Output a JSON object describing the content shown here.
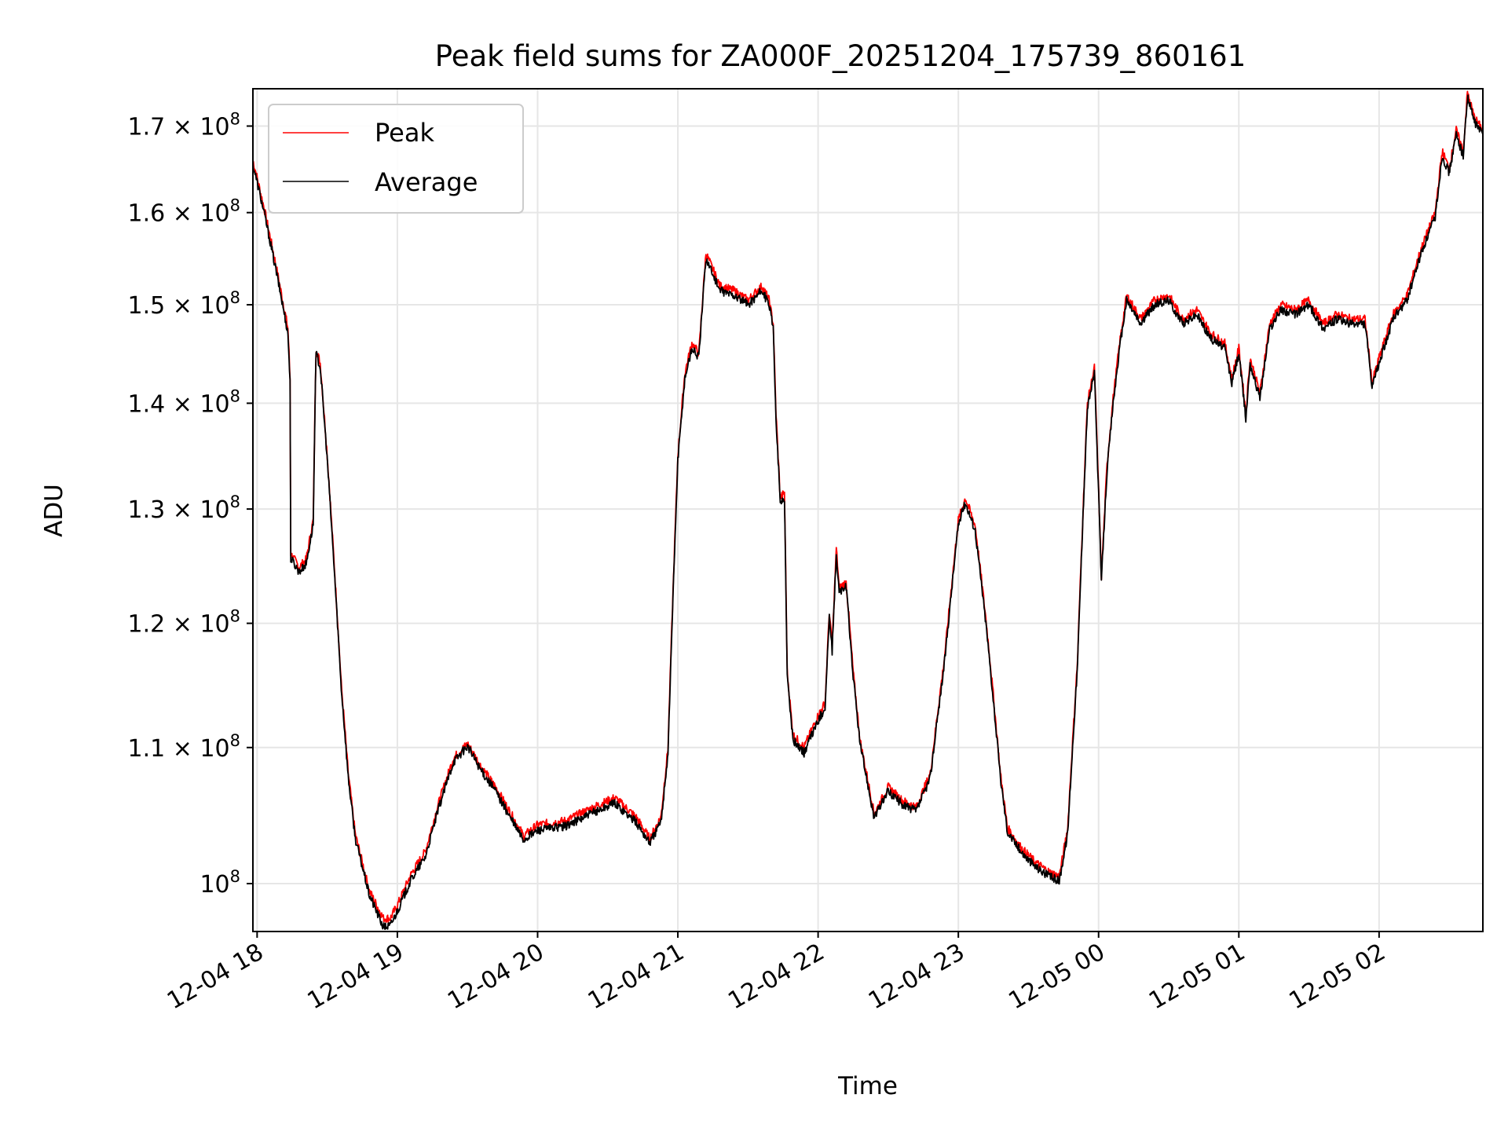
{
  "chart_data": {
    "type": "line",
    "title": "Peak field sums for ZA000F_20251204_175739_860161",
    "xlabel": "Time",
    "ylabel": "ADU",
    "yscale": "log",
    "ylim": [
      96700000,
      174500000
    ],
    "xlim_hours": [
      17.97,
      26.74
    ],
    "grid": true,
    "legend_position": "upper-left",
    "x_ticks": [
      {
        "hour": 18,
        "label": "12-04 18"
      },
      {
        "hour": 19,
        "label": "12-04 19"
      },
      {
        "hour": 20,
        "label": "12-04 20"
      },
      {
        "hour": 21,
        "label": "12-04 21"
      },
      {
        "hour": 22,
        "label": "12-04 22"
      },
      {
        "hour": 23,
        "label": "12-04 23"
      },
      {
        "hour": 24,
        "label": "12-05 00"
      },
      {
        "hour": 25,
        "label": "12-05 01"
      },
      {
        "hour": 26,
        "label": "12-05 02"
      }
    ],
    "y_ticks": [
      {
        "value": 100000000,
        "mantissa": "",
        "exponent": "8"
      },
      {
        "value": 110000000,
        "mantissa": "1.1",
        "exponent": "8"
      },
      {
        "value": 120000000,
        "mantissa": "1.2",
        "exponent": "8"
      },
      {
        "value": 130000000,
        "mantissa": "1.3",
        "exponent": "8"
      },
      {
        "value": 140000000,
        "mantissa": "1.4",
        "exponent": "8"
      },
      {
        "value": 150000000,
        "mantissa": "1.5",
        "exponent": "8"
      },
      {
        "value": 160000000,
        "mantissa": "1.6",
        "exponent": "8"
      },
      {
        "value": 170000000,
        "mantissa": "1.7",
        "exponent": "8"
      }
    ],
    "series": [
      {
        "name": "Peak",
        "color": "#ff0000",
        "points": [
          [
            17.97,
            166.0
          ],
          [
            18.05,
            160.5
          ],
          [
            18.15,
            153.0
          ],
          [
            18.22,
            147.5
          ],
          [
            18.235,
            142.5
          ],
          [
            18.24,
            126.0
          ],
          [
            18.3,
            124.8
          ],
          [
            18.35,
            125.5
          ],
          [
            18.4,
            129.0
          ],
          [
            18.42,
            145.5
          ],
          [
            18.45,
            144.0
          ],
          [
            18.5,
            135.0
          ],
          [
            18.55,
            125.0
          ],
          [
            18.6,
            115.0
          ],
          [
            18.65,
            108.0
          ],
          [
            18.7,
            103.5
          ],
          [
            18.8,
            99.5
          ],
          [
            18.9,
            97.6
          ],
          [
            18.95,
            97.6
          ],
          [
            19.0,
            98.5
          ],
          [
            19.1,
            100.7
          ],
          [
            19.2,
            102.3
          ],
          [
            19.3,
            106.0
          ],
          [
            19.4,
            109.2
          ],
          [
            19.5,
            110.3
          ],
          [
            19.6,
            108.5
          ],
          [
            19.7,
            107.0
          ],
          [
            19.8,
            105.2
          ],
          [
            19.9,
            103.4
          ],
          [
            20.0,
            104.2
          ],
          [
            20.2,
            104.5
          ],
          [
            20.4,
            105.5
          ],
          [
            20.55,
            106.2
          ],
          [
            20.7,
            104.8
          ],
          [
            20.8,
            103.2
          ],
          [
            20.88,
            104.8
          ],
          [
            20.93,
            110.0
          ],
          [
            21.0,
            135.0
          ],
          [
            21.05,
            143.0
          ],
          [
            21.1,
            146.0
          ],
          [
            21.15,
            145.0
          ],
          [
            21.2,
            155.5
          ],
          [
            21.3,
            152.0
          ],
          [
            21.4,
            151.5
          ],
          [
            21.5,
            150.5
          ],
          [
            21.6,
            152.0
          ],
          [
            21.65,
            150.5
          ],
          [
            21.68,
            148.0
          ],
          [
            21.7,
            139.0
          ],
          [
            21.73,
            131.0
          ],
          [
            21.76,
            131.5
          ],
          [
            21.78,
            116.0
          ],
          [
            21.82,
            111.0
          ],
          [
            21.9,
            110.0
          ],
          [
            22.0,
            112.5
          ],
          [
            22.05,
            113.5
          ],
          [
            22.08,
            121.0
          ],
          [
            22.1,
            118.0
          ],
          [
            22.13,
            126.5
          ],
          [
            22.15,
            123.0
          ],
          [
            22.2,
            123.5
          ],
          [
            22.25,
            116.0
          ],
          [
            22.3,
            110.5
          ],
          [
            22.4,
            105.0
          ],
          [
            22.5,
            107.0
          ],
          [
            22.6,
            106.0
          ],
          [
            22.7,
            105.5
          ],
          [
            22.8,
            108.0
          ],
          [
            22.9,
            117.0
          ],
          [
            23.0,
            129.0
          ],
          [
            23.05,
            131.0
          ],
          [
            23.12,
            128.5
          ],
          [
            23.2,
            120.0
          ],
          [
            23.3,
            108.0
          ],
          [
            23.35,
            104.0
          ],
          [
            23.45,
            102.5
          ],
          [
            23.55,
            101.5
          ],
          [
            23.65,
            100.8
          ],
          [
            23.72,
            100.5
          ],
          [
            23.78,
            104.0
          ],
          [
            23.85,
            117.0
          ],
          [
            23.92,
            140.0
          ],
          [
            23.97,
            143.5
          ],
          [
            24.02,
            124.0
          ],
          [
            24.06,
            134.0
          ],
          [
            24.1,
            140.0
          ],
          [
            24.15,
            146.0
          ],
          [
            24.2,
            151.0
          ],
          [
            24.3,
            148.5
          ],
          [
            24.4,
            150.5
          ],
          [
            24.5,
            151.0
          ],
          [
            24.6,
            148.5
          ],
          [
            24.7,
            149.5
          ],
          [
            24.8,
            147.0
          ],
          [
            24.9,
            146.0
          ],
          [
            24.95,
            142.5
          ],
          [
            25.0,
            145.5
          ],
          [
            25.05,
            139.0
          ],
          [
            25.08,
            144.5
          ],
          [
            25.15,
            141.0
          ],
          [
            25.22,
            148.0
          ],
          [
            25.3,
            150.0
          ],
          [
            25.4,
            149.5
          ],
          [
            25.5,
            150.5
          ],
          [
            25.6,
            148.0
          ],
          [
            25.7,
            149.0
          ],
          [
            25.8,
            148.5
          ],
          [
            25.9,
            148.5
          ],
          [
            25.95,
            142.0
          ],
          [
            26.0,
            144.5
          ],
          [
            26.1,
            149.0
          ],
          [
            26.2,
            151.0
          ],
          [
            26.3,
            156.0
          ],
          [
            26.4,
            160.0
          ],
          [
            26.45,
            167.0
          ],
          [
            26.5,
            165.0
          ],
          [
            26.55,
            169.5
          ],
          [
            26.6,
            167.0
          ],
          [
            26.63,
            174.0
          ],
          [
            26.68,
            171.0
          ],
          [
            26.74,
            169.5
          ]
        ]
      },
      {
        "name": "Average",
        "color": "#000000",
        "points": [
          [
            17.97,
            165.5
          ],
          [
            18.05,
            160.0
          ],
          [
            18.15,
            152.5
          ],
          [
            18.22,
            147.0
          ],
          [
            18.235,
            142.0
          ],
          [
            18.24,
            125.6
          ],
          [
            18.3,
            124.4
          ],
          [
            18.35,
            125.1
          ],
          [
            18.4,
            128.6
          ],
          [
            18.42,
            145.0
          ],
          [
            18.45,
            143.6
          ],
          [
            18.5,
            134.6
          ],
          [
            18.55,
            124.6
          ],
          [
            18.6,
            114.7
          ],
          [
            18.65,
            107.7
          ],
          [
            18.7,
            103.2
          ],
          [
            18.8,
            99.2
          ],
          [
            18.9,
            97.0
          ],
          [
            18.95,
            97.1
          ],
          [
            19.0,
            98.1
          ],
          [
            19.1,
            100.3
          ],
          [
            19.2,
            101.9
          ],
          [
            19.3,
            105.6
          ],
          [
            19.4,
            108.9
          ],
          [
            19.5,
            110.1
          ],
          [
            19.6,
            108.2
          ],
          [
            19.7,
            106.7
          ],
          [
            19.8,
            104.8
          ],
          [
            19.9,
            103.1
          ],
          [
            20.0,
            103.8
          ],
          [
            20.2,
            104.1
          ],
          [
            20.4,
            105.1
          ],
          [
            20.55,
            105.8
          ],
          [
            20.7,
            104.4
          ],
          [
            20.8,
            102.9
          ],
          [
            20.88,
            104.4
          ],
          [
            20.93,
            109.6
          ],
          [
            21.0,
            134.5
          ],
          [
            21.05,
            142.5
          ],
          [
            21.1,
            145.5
          ],
          [
            21.15,
            144.6
          ],
          [
            21.2,
            155.0
          ],
          [
            21.3,
            151.5
          ],
          [
            21.4,
            151.0
          ],
          [
            21.5,
            150.0
          ],
          [
            21.6,
            151.5
          ],
          [
            21.65,
            150.0
          ],
          [
            21.68,
            147.5
          ],
          [
            21.7,
            138.6
          ],
          [
            21.73,
            130.5
          ],
          [
            21.76,
            131.0
          ],
          [
            21.78,
            115.6
          ],
          [
            21.82,
            110.6
          ],
          [
            21.9,
            109.6
          ],
          [
            22.0,
            112.1
          ],
          [
            22.05,
            113.1
          ],
          [
            22.08,
            120.6
          ],
          [
            22.1,
            117.6
          ],
          [
            22.13,
            126.0
          ],
          [
            22.15,
            122.6
          ],
          [
            22.2,
            123.1
          ],
          [
            22.25,
            115.6
          ],
          [
            22.3,
            110.2
          ],
          [
            22.4,
            104.7
          ],
          [
            22.5,
            106.7
          ],
          [
            22.6,
            105.7
          ],
          [
            22.7,
            105.2
          ],
          [
            22.8,
            107.7
          ],
          [
            22.9,
            116.6
          ],
          [
            23.0,
            128.6
          ],
          [
            23.05,
            130.6
          ],
          [
            23.12,
            128.1
          ],
          [
            23.2,
            119.6
          ],
          [
            23.3,
            107.7
          ],
          [
            23.35,
            103.7
          ],
          [
            23.45,
            102.2
          ],
          [
            23.55,
            101.2
          ],
          [
            23.65,
            100.5
          ],
          [
            23.72,
            100.2
          ],
          [
            23.78,
            103.6
          ],
          [
            23.85,
            116.6
          ],
          [
            23.92,
            139.5
          ],
          [
            23.97,
            143.0
          ],
          [
            24.02,
            123.6
          ],
          [
            24.06,
            133.5
          ],
          [
            24.1,
            139.5
          ],
          [
            24.15,
            145.5
          ],
          [
            24.2,
            150.5
          ],
          [
            24.3,
            148.0
          ],
          [
            24.4,
            150.0
          ],
          [
            24.5,
            150.5
          ],
          [
            24.6,
            148.0
          ],
          [
            24.7,
            149.0
          ],
          [
            24.8,
            146.5
          ],
          [
            24.9,
            145.5
          ],
          [
            24.95,
            142.0
          ],
          [
            25.0,
            145.0
          ],
          [
            25.05,
            138.5
          ],
          [
            25.08,
            144.0
          ],
          [
            25.15,
            140.5
          ],
          [
            25.22,
            147.5
          ],
          [
            25.3,
            149.5
          ],
          [
            25.4,
            149.0
          ],
          [
            25.5,
            150.0
          ],
          [
            25.6,
            147.5
          ],
          [
            25.7,
            148.5
          ],
          [
            25.8,
            148.0
          ],
          [
            25.9,
            148.0
          ],
          [
            25.95,
            141.5
          ],
          [
            26.0,
            144.0
          ],
          [
            26.1,
            148.5
          ],
          [
            26.2,
            150.5
          ],
          [
            26.3,
            155.5
          ],
          [
            26.4,
            159.5
          ],
          [
            26.45,
            166.5
          ],
          [
            26.5,
            164.5
          ],
          [
            26.55,
            169.0
          ],
          [
            26.6,
            166.5
          ],
          [
            26.63,
            173.5
          ],
          [
            26.68,
            170.5
          ],
          [
            26.74,
            169.0
          ]
        ]
      }
    ],
    "points_unit": "hours since 12-04 00:00, ADU in millions"
  }
}
